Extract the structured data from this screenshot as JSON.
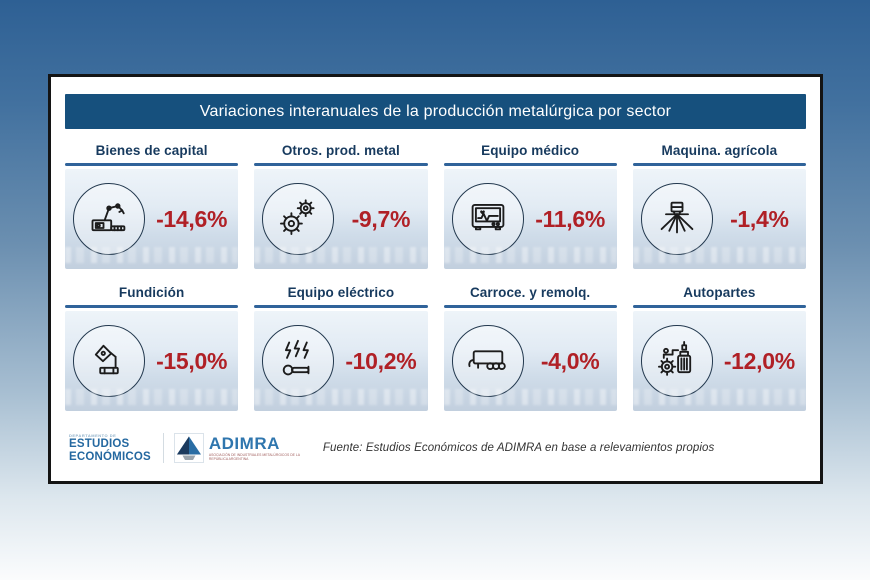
{
  "title": "Variaciones interanuales de la producción metalúrgica por sector",
  "colors": {
    "header_bar": "#16507d",
    "value_red": "#b02026",
    "underline_blue": "#30639a",
    "background_top": "#2e6094",
    "background_bottom": "#fbfcfd"
  },
  "chart_data": {
    "type": "table",
    "title": "Variaciones interanuales de la producción metalúrgica por sector",
    "categories": [
      "Bienes de capital",
      "Otros. prod. metal",
      "Equipo médico",
      "Maquina. agrícola",
      "Fundición",
      "Equipo eléctrico",
      "Carroce. y remolq.",
      "Autopartes"
    ],
    "values": [
      -14.6,
      -9.7,
      -11.6,
      -1.4,
      -15.0,
      -10.2,
      -4.0,
      -12.0
    ]
  },
  "sectors": [
    {
      "label": "Bienes de capital",
      "value": "-14,6%",
      "icon": "robotic-arm"
    },
    {
      "label": "Otros. prod. metal",
      "value": "-9,7%",
      "icon": "gears"
    },
    {
      "label": "Equipo médico",
      "value": "-11,6%",
      "icon": "heart-monitor"
    },
    {
      "label": "Maquina. agrícola",
      "value": "-1,4%",
      "icon": "seeder"
    },
    {
      "label": "Fundición",
      "value": "-15,0%",
      "icon": "foundry-pour"
    },
    {
      "label": "Equipo eléctrico",
      "value": "-10,2%",
      "icon": "lightning-wrench"
    },
    {
      "label": "Carroce. y remolq.",
      "value": "-4,0%",
      "icon": "trailer"
    },
    {
      "label": "Autopartes",
      "value": "-12,0%",
      "icon": "auto-parts"
    }
  ],
  "footer": {
    "department_small": "DEPARTAMENTO DE",
    "department_line1": "ESTUDIOS",
    "department_line2": "ECONÓMICOS",
    "adimra": "ADIMRA",
    "adimra_tagline": "ASOCIACIÓN DE INDUSTRIALES METALÚRGICOS DE LA REPÚBLICA ARGENTINA",
    "source": "Fuente: Estudios Económicos de ADIMRA en base a relevamientos propios"
  }
}
